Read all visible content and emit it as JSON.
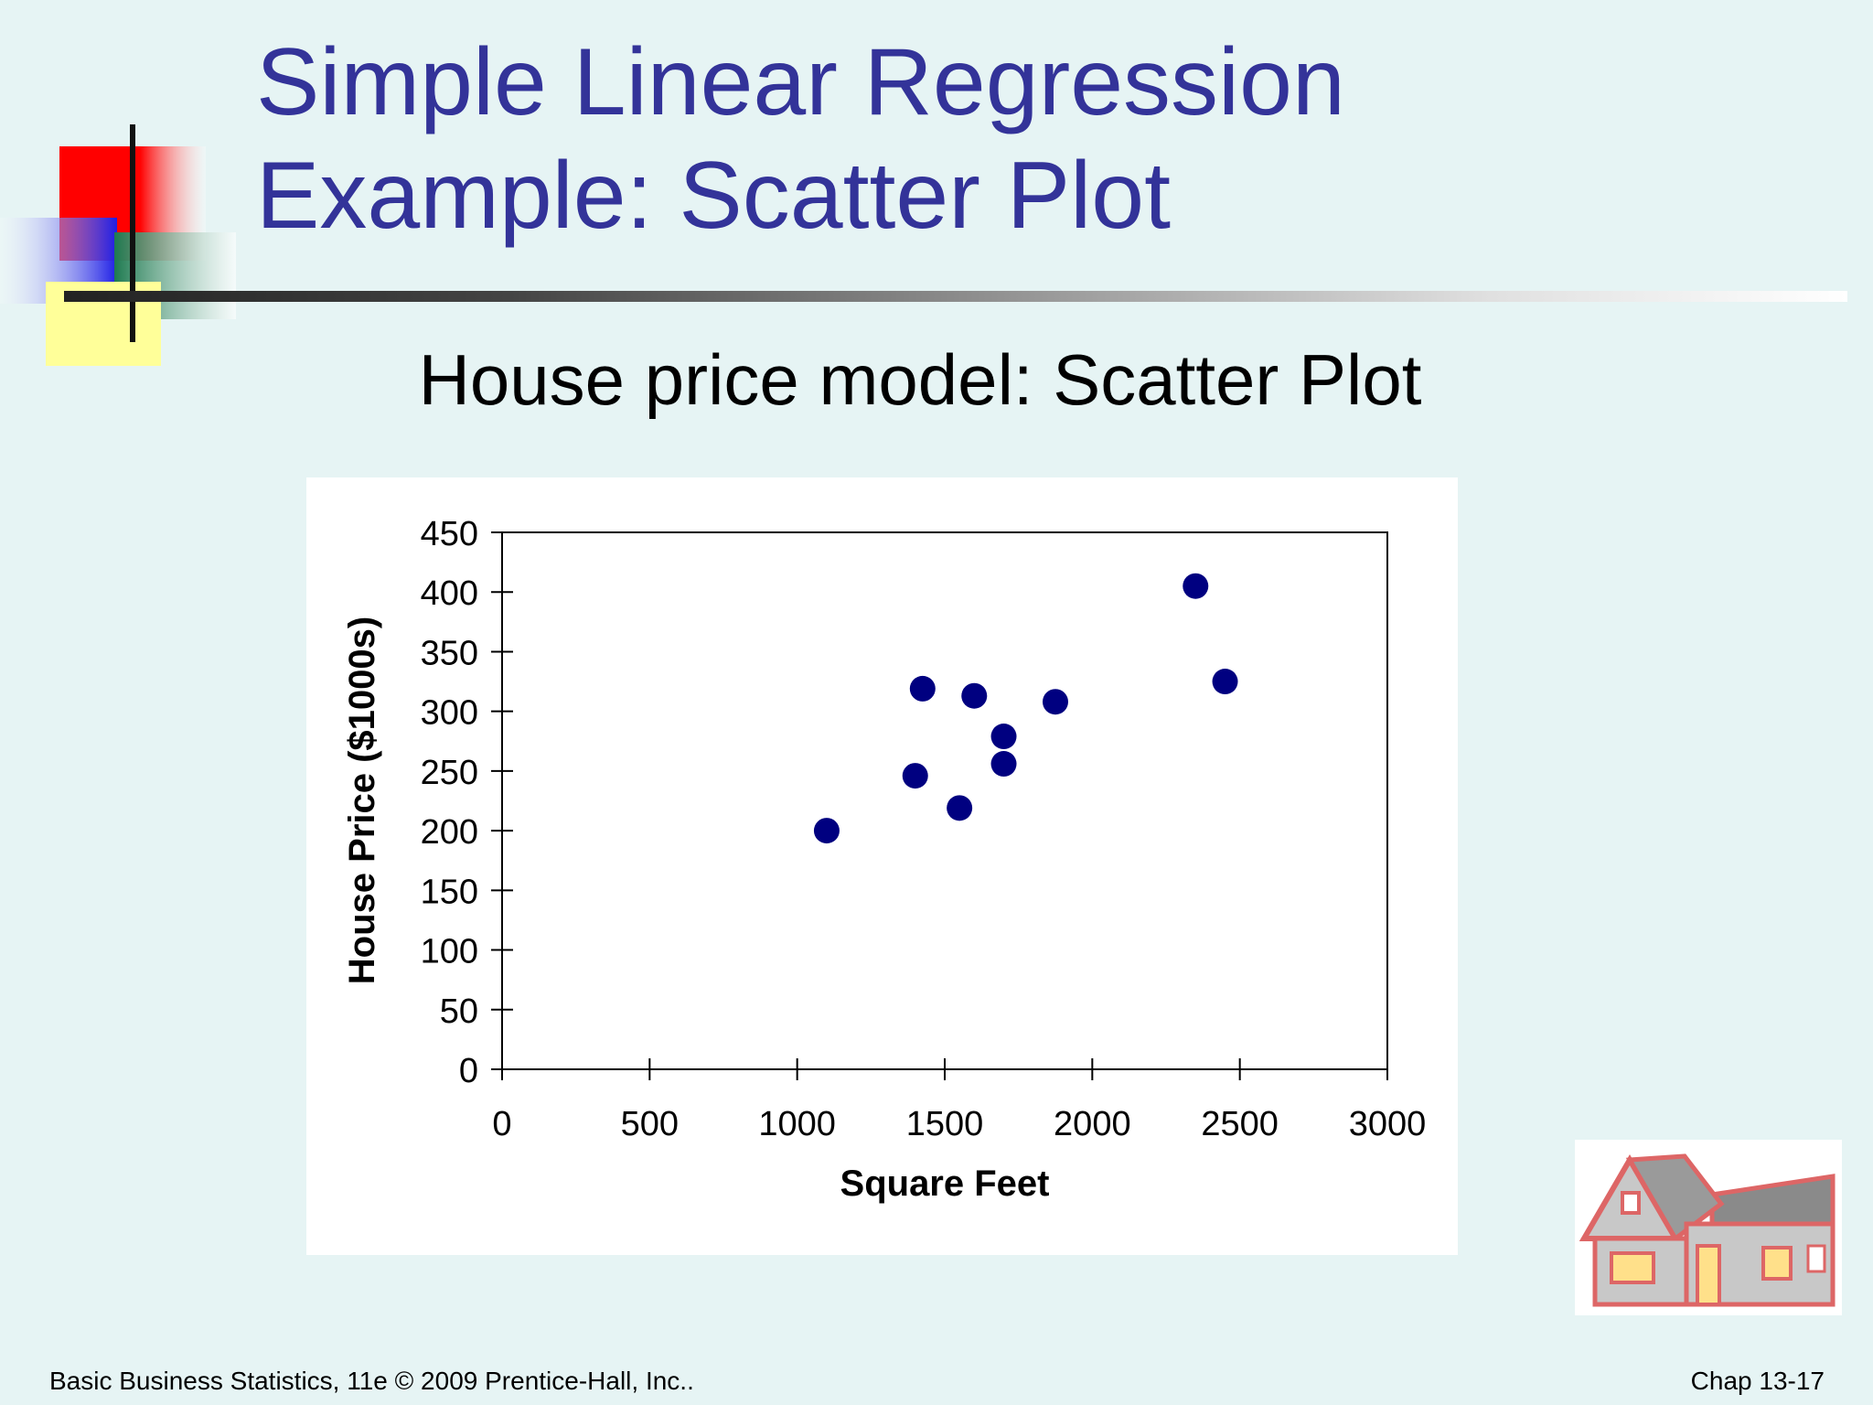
{
  "slide": {
    "title_line1": "Simple Linear Regression",
    "title_line2": "Example:  Scatter Plot",
    "subtitle": "House price model:  Scatter Plot",
    "footer_left": "Basic Business Statistics, 11e © 2009 Prentice-Hall, Inc..",
    "footer_right": "Chap 13-17",
    "colors": {
      "title": "#333399",
      "background": "#e6f4f4",
      "marker": "#000080"
    }
  },
  "chart_data": {
    "type": "scatter",
    "title": "",
    "xlabel": "Square Feet",
    "ylabel": "House Price ($1000s)",
    "xlim": [
      0,
      3000
    ],
    "ylim": [
      0,
      450
    ],
    "xticks": [
      0,
      500,
      1000,
      1500,
      2000,
      2500,
      3000
    ],
    "yticks": [
      0,
      50,
      100,
      150,
      200,
      250,
      300,
      350,
      400,
      450
    ],
    "grid": false,
    "legend": "none",
    "series": [
      {
        "points": [
          {
            "x": 1100,
            "y": 200
          },
          {
            "x": 1400,
            "y": 246
          },
          {
            "x": 1425,
            "y": 319
          },
          {
            "x": 1550,
            "y": 219
          },
          {
            "x": 1600,
            "y": 313
          },
          {
            "x": 1700,
            "y": 279
          },
          {
            "x": 1700,
            "y": 256
          },
          {
            "x": 1875,
            "y": 308
          },
          {
            "x": 2350,
            "y": 405
          },
          {
            "x": 2450,
            "y": 325
          }
        ]
      }
    ]
  }
}
